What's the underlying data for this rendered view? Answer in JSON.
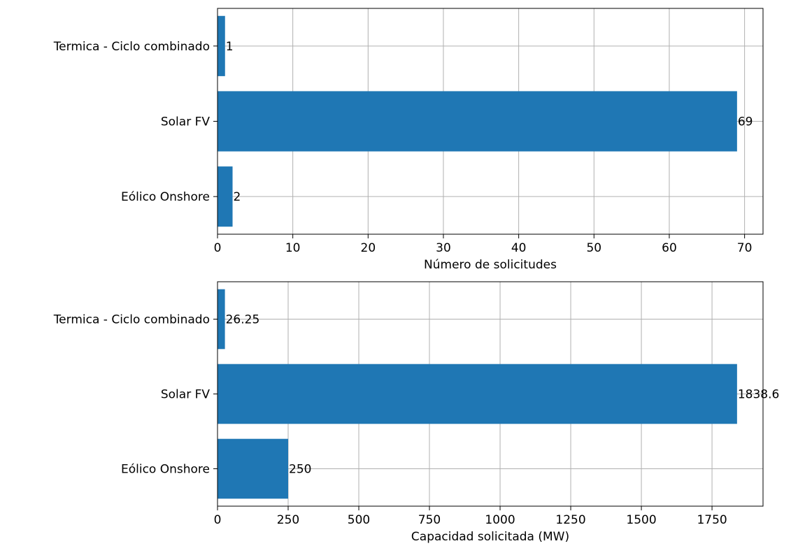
{
  "chart_data": [
    {
      "type": "bar",
      "orientation": "horizontal",
      "categories": [
        "Eólico Onshore",
        "Solar FV",
        "Termica - Ciclo combinado"
      ],
      "values": [
        2,
        69,
        1
      ],
      "data_labels": [
        "2",
        "69",
        "1"
      ],
      "xlabel": "Número de solicitudes",
      "xlim": [
        0,
        72.45
      ],
      "xticks": [
        0,
        10,
        20,
        30,
        40,
        50,
        60,
        70
      ],
      "xtick_labels": [
        "0",
        "10",
        "20",
        "30",
        "40",
        "50",
        "60",
        "70"
      ],
      "grid": true,
      "bar_color": "#1f77b4"
    },
    {
      "type": "bar",
      "orientation": "horizontal",
      "categories": [
        "Eólico Onshore",
        "Solar FV",
        "Termica - Ciclo combinado"
      ],
      "values": [
        250,
        1838.6,
        26.25
      ],
      "data_labels": [
        "250",
        "1838.6",
        "26.25"
      ],
      "xlabel": "Capacidad solicitada (MW)",
      "xlim": [
        0,
        1930.5
      ],
      "xticks": [
        0,
        250,
        500,
        750,
        1000,
        1250,
        1500,
        1750
      ],
      "xtick_labels": [
        "0",
        "250",
        "500",
        "750",
        "1000",
        "1250",
        "1500",
        "1750"
      ],
      "grid": true,
      "bar_color": "#1f77b4"
    }
  ]
}
